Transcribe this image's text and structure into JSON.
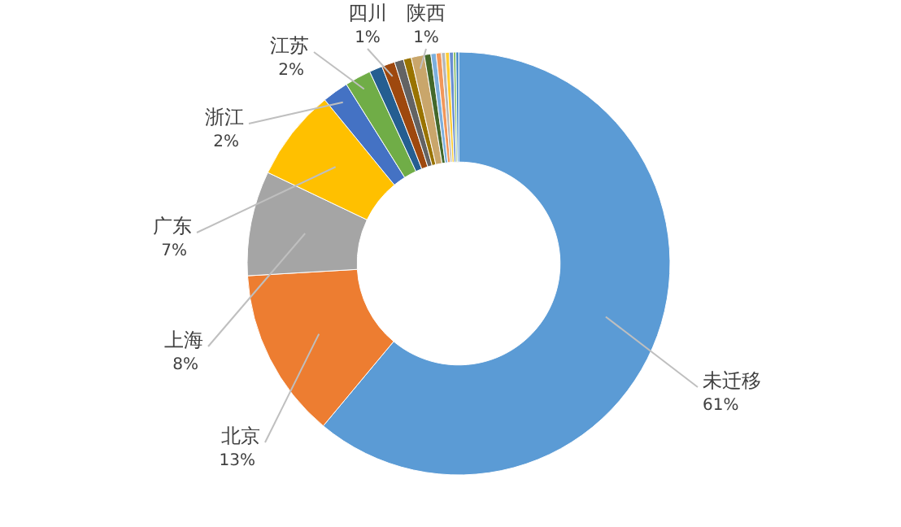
{
  "chart_data": {
    "type": "donut",
    "categories": [
      "未迁移",
      "北京",
      "上海",
      "广东",
      "浙江",
      "江苏",
      null,
      "四川",
      null,
      null,
      "陕西",
      null,
      null,
      null,
      null,
      null,
      null,
      null,
      null
    ],
    "values": [
      61,
      13,
      8,
      7,
      2,
      2,
      1,
      1,
      0.7,
      0.6,
      1,
      0.5,
      0.4,
      0.4,
      0.3,
      0.3,
      0.3,
      0.2,
      0.2
    ],
    "value_labels": [
      "61%",
      "13%",
      "8%",
      "7%",
      "2%",
      "2%",
      null,
      "1%",
      null,
      null,
      "1%",
      null,
      null,
      null,
      null,
      null,
      null,
      null,
      null
    ],
    "colors": [
      "#5b9bd5",
      "#ed7d31",
      "#a5a5a5",
      "#ffc000",
      "#4472c4",
      "#70ad47",
      "#255e91",
      "#9e480e",
      "#636363",
      "#997300",
      "#c9a66b",
      "#43682b",
      "#7cafdd",
      "#f1975a",
      "#b7b7b7",
      "#ffcd33",
      "#698ed0",
      "#8cc168",
      "#327dc2"
    ],
    "legend": false
  }
}
